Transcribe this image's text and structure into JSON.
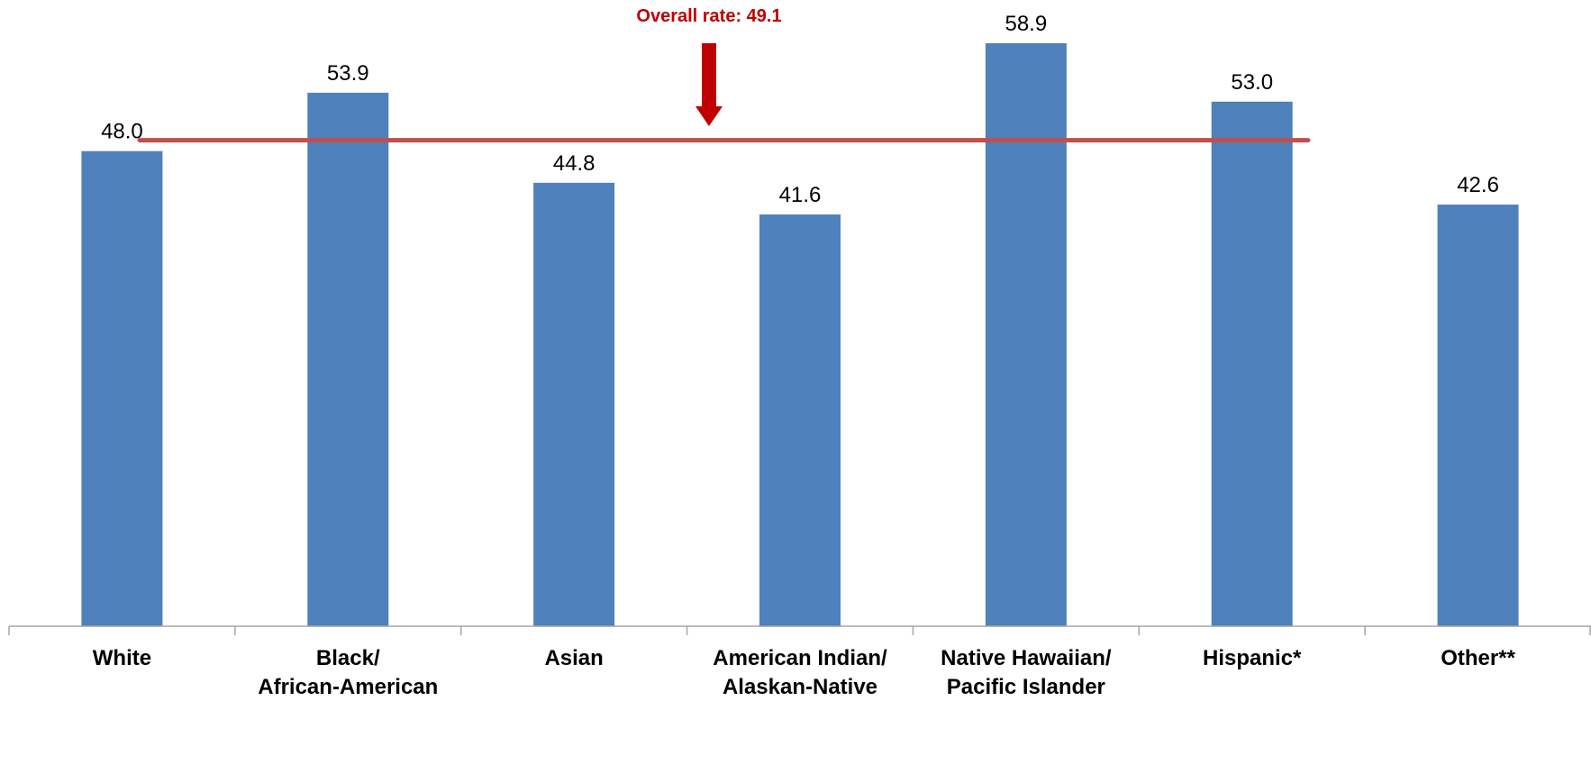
{
  "chart_data": {
    "type": "bar",
    "categories": [
      [
        "White"
      ],
      [
        "Black/",
        "African-American"
      ],
      [
        "Asian"
      ],
      [
        "American Indian/",
        "Alaskan-Native"
      ],
      [
        "Native Hawaiian/",
        "Pacific Islander"
      ],
      [
        "Hispanic*"
      ],
      [
        "Other**"
      ]
    ],
    "values": [
      48.0,
      53.9,
      44.8,
      41.6,
      58.9,
      53.0,
      42.6
    ],
    "value_labels": [
      "48.0",
      "53.9",
      "44.8",
      "41.6",
      "58.9",
      "53.0",
      "42.6"
    ],
    "ylim": [
      0,
      58.9
    ],
    "grid": false,
    "legend": "none",
    "reference_line": {
      "value": 49.1,
      "label": "Overall rate: 49.1"
    },
    "colors": {
      "bar": "#4F81BD",
      "reference_line": "#C0504D",
      "arrow": "#C00000",
      "axis": "#A6A6A6"
    }
  }
}
